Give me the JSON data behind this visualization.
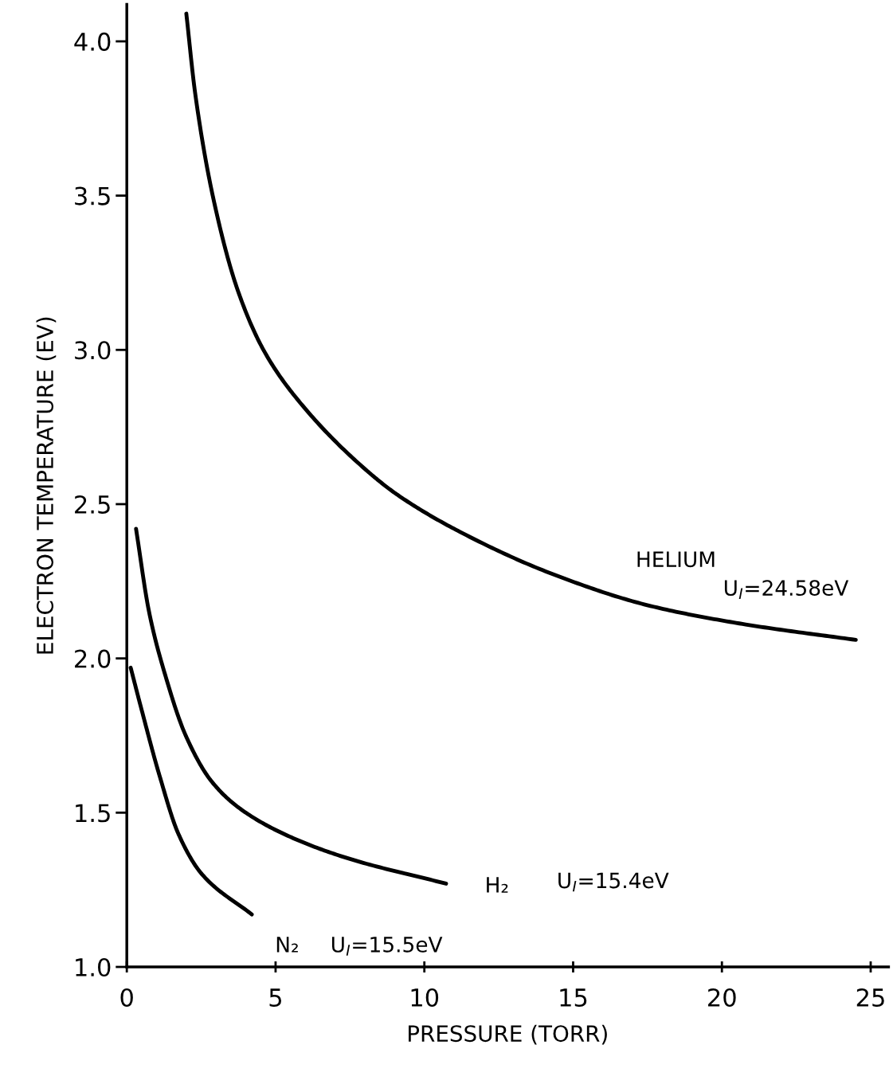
{
  "chart_data": {
    "type": "line",
    "xlabel": "PRESSURE (TORR)",
    "ylabel": "ELECTRON TEMPERATURE (EV)",
    "xlim": [
      0,
      25.6
    ],
    "ylim": [
      1.0,
      4.12
    ],
    "xticks": [
      0,
      5,
      10,
      15,
      20,
      25
    ],
    "yticks": [
      {
        "value": 1.0,
        "label": "1.0"
      },
      {
        "value": 1.5,
        "label": "1.5"
      },
      {
        "value": 2.0,
        "label": "2.0"
      },
      {
        "value": 2.5,
        "label": "2.5"
      },
      {
        "value": 3.0,
        "label": "3.0"
      },
      {
        "value": 3.5,
        "label": "3.5"
      },
      {
        "value": 4.0,
        "label": "4.0"
      }
    ],
    "grid": false,
    "legend": false,
    "marker": "none",
    "line_style": "solid",
    "series": [
      {
        "name": "HELIUM",
        "color": "#000000",
        "x": [
          2.0,
          2.3,
          2.91,
          3.74,
          4.65,
          5.99,
          8.05,
          9.1,
          11.2,
          14.4,
          17.6,
          20.8,
          24.5
        ],
        "values": [
          4.09,
          3.83,
          3.49,
          3.19,
          2.99,
          2.81,
          2.61,
          2.53,
          2.41,
          2.27,
          2.17,
          2.11,
          2.06
        ]
      },
      {
        "name": "H₂",
        "color": "#000000",
        "x": [
          0.31,
          0.75,
          1.31,
          1.98,
          2.86,
          3.85,
          5.53,
          7.5,
          10.73
        ],
        "values": [
          2.42,
          2.15,
          1.94,
          1.75,
          1.6,
          1.51,
          1.42,
          1.35,
          1.27
        ]
      },
      {
        "name": "N₂",
        "color": "#000000",
        "x": [
          0.13,
          0.48,
          1.1,
          1.74,
          2.53,
          4.2
        ],
        "values": [
          1.97,
          1.84,
          1.62,
          1.43,
          1.3,
          1.17
        ]
      }
    ],
    "annotations": [
      "U$_{I}$=24.58eV",
      "U$_{I}$=15.4eV",
      "U$_{I}$=15.5eV"
    ]
  }
}
